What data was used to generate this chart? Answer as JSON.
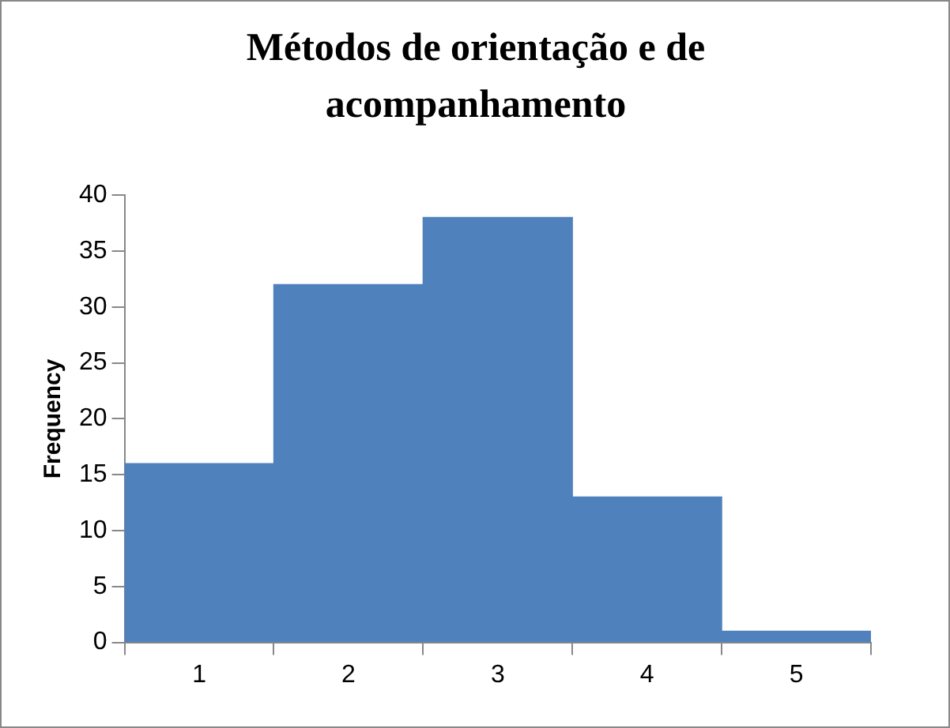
{
  "chart_data": {
    "type": "bar",
    "title": "Métodos de orientação e de acompanhamento",
    "ylabel": "Frequency",
    "categories": [
      "1",
      "2",
      "3",
      "4",
      "5"
    ],
    "values": [
      16,
      32,
      38,
      13,
      1
    ],
    "color": "#4f81bd",
    "ylim": [
      0,
      40
    ],
    "yticks": [
      0,
      5,
      10,
      15,
      20,
      25,
      30,
      35,
      40
    ],
    "grid": false,
    "legend": false
  }
}
